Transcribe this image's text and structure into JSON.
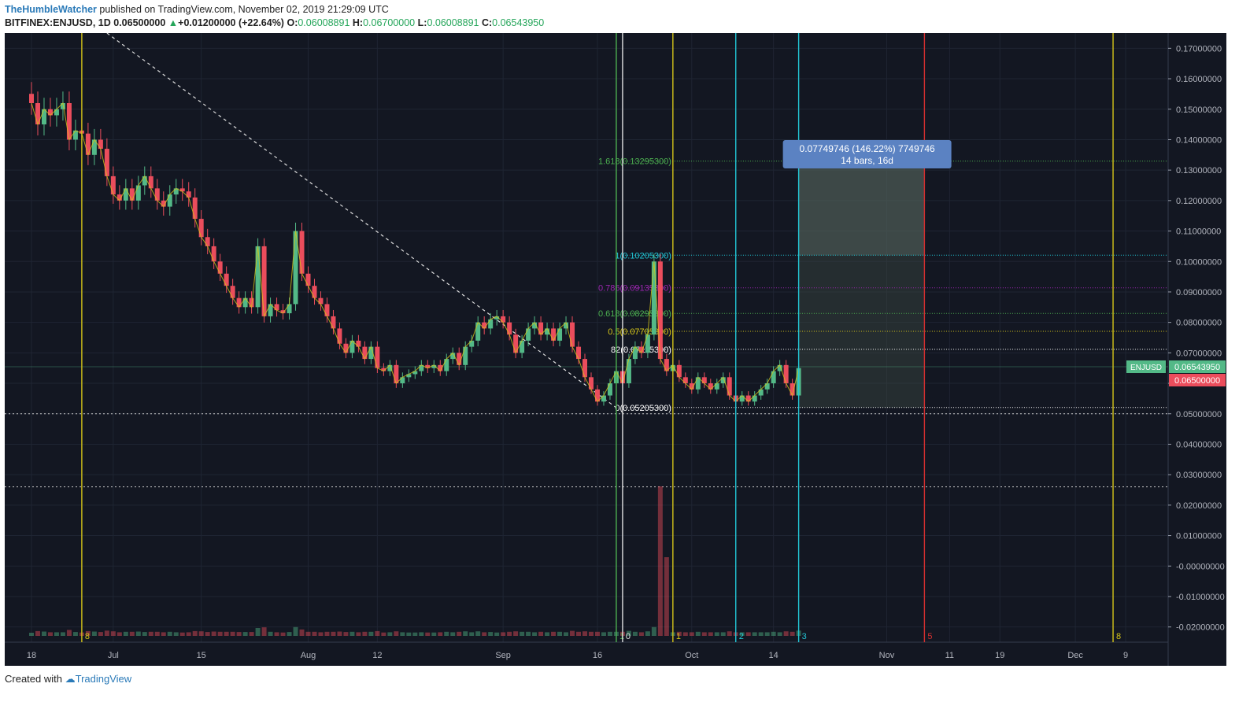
{
  "header": {
    "author": "TheHumbleWatcher",
    "published": "published on TradingView.com, November 02, 2019 21:29:09 UTC",
    "symbol": "BITFINEX:ENJUSD, 1D",
    "last": "0.06500000",
    "change": "+0.01200000 (+22.64%)",
    "o_label": "O:",
    "o": "0.06008891",
    "h_label": "H:",
    "h": "0.06700000",
    "l_label": "L:",
    "l": "0.06008891",
    "c_label": "C:",
    "c": "0.06543950"
  },
  "footer": {
    "created_with": "Created with",
    "brand": "TradingView"
  },
  "colors": {
    "bg": "#131722",
    "up": "#53b987",
    "down": "#eb4d5c",
    "yellow": "#d4c419",
    "cyan": "#22c7d6",
    "red": "#d32f2f",
    "green": "#4caf50",
    "white": "#e0e0e0"
  },
  "chart_data": {
    "type": "candlestick",
    "ylim": [
      -0.025,
      0.175
    ],
    "y_ticks": [
      "0.17000000",
      "0.16000000",
      "0.15000000",
      "0.14000000",
      "0.13000000",
      "0.12000000",
      "0.11000000",
      "0.10000000",
      "0.09000000",
      "0.08000000",
      "0.07000000",
      "0.06000000",
      "0.05000000",
      "0.04000000",
      "0.03000000",
      "0.02000000",
      "0.01000000",
      "-0.00000000",
      "-0.01000000",
      "-0.02000000"
    ],
    "y_tick_values": [
      0.17,
      0.16,
      0.15,
      0.14,
      0.13,
      0.12,
      0.11,
      0.1,
      0.09,
      0.08,
      0.07,
      0.06,
      0.05,
      0.04,
      0.03,
      0.02,
      0.01,
      0.0,
      -0.01,
      -0.02
    ],
    "x_ticks": [
      {
        "label": "18",
        "day": 0
      },
      {
        "label": "Jul",
        "day": 13
      },
      {
        "label": "15",
        "day": 27
      },
      {
        "label": "Aug",
        "day": 44
      },
      {
        "label": "12",
        "day": 55
      },
      {
        "label": "Sep",
        "day": 75
      },
      {
        "label": "16",
        "day": 90
      },
      {
        "label": "Oct",
        "day": 105
      },
      {
        "label": "14",
        "day": 118
      },
      {
        "label": "Nov",
        "day": 136
      },
      {
        "label": "11",
        "day": 146
      },
      {
        "label": "19",
        "day": 154
      },
      {
        "label": "Dec",
        "day": 166
      },
      {
        "label": "9",
        "day": 174
      }
    ],
    "close_series": [
      0.152,
      0.145,
      0.15,
      0.148,
      0.15,
      0.152,
      0.14,
      0.143,
      0.142,
      0.135,
      0.14,
      0.137,
      0.128,
      0.122,
      0.12,
      0.124,
      0.12,
      0.125,
      0.128,
      0.124,
      0.12,
      0.118,
      0.122,
      0.124,
      0.123,
      0.121,
      0.114,
      0.108,
      0.105,
      0.1,
      0.096,
      0.092,
      0.088,
      0.085,
      0.088,
      0.085,
      0.105,
      0.082,
      0.086,
      0.084,
      0.083,
      0.086,
      0.11,
      0.096,
      0.092,
      0.088,
      0.086,
      0.082,
      0.078,
      0.073,
      0.07,
      0.074,
      0.072,
      0.068,
      0.072,
      0.065,
      0.064,
      0.066,
      0.06,
      0.062,
      0.063,
      0.064,
      0.066,
      0.065,
      0.066,
      0.064,
      0.068,
      0.07,
      0.066,
      0.072,
      0.074,
      0.08,
      0.078,
      0.081,
      0.082,
      0.08,
      0.076,
      0.07,
      0.074,
      0.078,
      0.08,
      0.076,
      0.078,
      0.074,
      0.078,
      0.08,
      0.072,
      0.068,
      0.062,
      0.058,
      0.054,
      0.056,
      0.06,
      0.064,
      0.06,
      0.068,
      0.072,
      0.07,
      0.076,
      0.1,
      0.068,
      0.064,
      0.066,
      0.062,
      0.06,
      0.058,
      0.062,
      0.06,
      0.058,
      0.06,
      0.062,
      0.056,
      0.054,
      0.056,
      0.054,
      0.056,
      0.058,
      0.06,
      0.064,
      0.066,
      0.06,
      0.056,
      0.065
    ],
    "levels": [
      {
        "label": "1.618(0.13295300)",
        "value": 0.132953,
        "color": "#4caf50"
      },
      {
        "label": "1(0.10205300)",
        "value": 0.102053,
        "color": "#22c7d6"
      },
      {
        "label": "0.786(0.09135300)",
        "value": 0.091353,
        "color": "#9c27b0"
      },
      {
        "label": "0.618(0.08295300)",
        "value": 0.082953,
        "color": "#4caf50"
      },
      {
        "label": "0.5(0.07705300)",
        "value": 0.077053,
        "color": "#d4c419"
      },
      {
        "label": "82(0.07115300)",
        "value": 0.071153,
        "color": "#ffffff"
      },
      {
        "label": "0(0.05205300)",
        "value": 0.052053,
        "color": "#ffffff"
      }
    ],
    "horizontal_lines": [
      0.05,
      0.026
    ],
    "vertical_lines": [
      {
        "day": 8,
        "color": "#d4c419",
        "label": "8"
      },
      {
        "day": 93,
        "color": "#4caf50",
        "label": "1"
      },
      {
        "day": 94,
        "color": "#e0e0e0",
        "label": "0"
      },
      {
        "day": 102,
        "color": "#d4c419",
        "label": "1"
      },
      {
        "day": 112,
        "color": "#22c7d6",
        "label": "2"
      },
      {
        "day": 122,
        "color": "#22c7d6",
        "label": "3"
      },
      {
        "day": 142,
        "color": "#d32f2f",
        "label": "5"
      },
      {
        "day": 172,
        "color": "#d4c419",
        "label": "8"
      }
    ],
    "measure_box": {
      "line1": "0.07749746 (146.22%) 7749746",
      "line2": "14 bars, 16d",
      "top": 0.132,
      "bottom": 0.052
    },
    "price_tags": [
      {
        "label": "ENJUSD",
        "value": "0.06543950",
        "color": "#53b987"
      },
      {
        "value": "0.06500000",
        "color": "#eb4d5c"
      }
    ]
  }
}
